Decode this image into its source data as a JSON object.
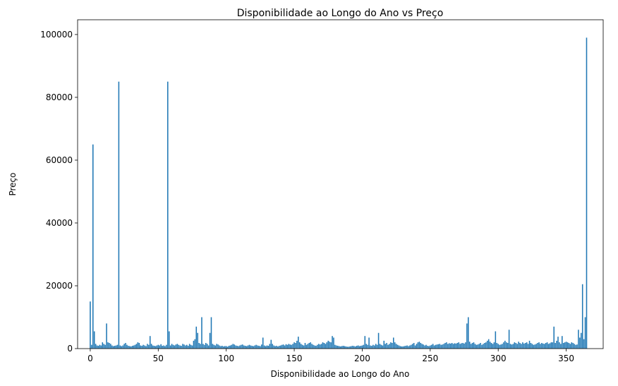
{
  "chart_data": {
    "type": "bar",
    "title": "Disponibilidade ao Longo do Ano vs Preço",
    "xlabel": "Disponibilidade ao Longo do Ano",
    "ylabel": "Preço",
    "color": "#1f77b4",
    "x": [
      0,
      1,
      2,
      3,
      4,
      5,
      6,
      7,
      8,
      9,
      10,
      11,
      12,
      13,
      14,
      15,
      16,
      17,
      18,
      19,
      20,
      21,
      22,
      23,
      24,
      25,
      26,
      27,
      28,
      29,
      30,
      31,
      32,
      33,
      34,
      35,
      36,
      37,
      38,
      39,
      40,
      41,
      42,
      43,
      44,
      45,
      46,
      47,
      48,
      49,
      50,
      51,
      52,
      53,
      54,
      55,
      56,
      57,
      58,
      59,
      60,
      61,
      62,
      63,
      64,
      65,
      66,
      67,
      68,
      69,
      70,
      71,
      72,
      73,
      74,
      75,
      76,
      77,
      78,
      79,
      80,
      81,
      82,
      83,
      84,
      85,
      86,
      87,
      88,
      89,
      90,
      91,
      92,
      93,
      94,
      95,
      96,
      97,
      98,
      99,
      100,
      101,
      102,
      103,
      104,
      105,
      106,
      107,
      108,
      109,
      110,
      111,
      112,
      113,
      114,
      115,
      116,
      117,
      118,
      119,
      120,
      121,
      122,
      123,
      124,
      125,
      126,
      127,
      128,
      129,
      130,
      131,
      132,
      133,
      134,
      135,
      136,
      137,
      138,
      139,
      140,
      141,
      142,
      143,
      144,
      145,
      146,
      147,
      148,
      149,
      150,
      151,
      152,
      153,
      154,
      155,
      156,
      157,
      158,
      159,
      160,
      161,
      162,
      163,
      164,
      165,
      166,
      167,
      168,
      169,
      170,
      171,
      172,
      173,
      174,
      175,
      176,
      177,
      178,
      179,
      180,
      181,
      182,
      183,
      184,
      185,
      186,
      187,
      188,
      189,
      190,
      191,
      192,
      193,
      194,
      195,
      196,
      197,
      198,
      199,
      200,
      201,
      202,
      203,
      204,
      205,
      206,
      207,
      208,
      209,
      210,
      211,
      212,
      213,
      214,
      215,
      216,
      217,
      218,
      219,
      220,
      221,
      222,
      223,
      224,
      225,
      226,
      227,
      228,
      229,
      230,
      231,
      232,
      233,
      234,
      235,
      236,
      237,
      238,
      239,
      240,
      241,
      242,
      243,
      244,
      245,
      246,
      247,
      248,
      249,
      250,
      251,
      252,
      253,
      254,
      255,
      256,
      257,
      258,
      259,
      260,
      261,
      262,
      263,
      264,
      265,
      266,
      267,
      268,
      269,
      270,
      271,
      272,
      273,
      274,
      275,
      276,
      277,
      278,
      279,
      280,
      281,
      282,
      283,
      284,
      285,
      286,
      287,
      288,
      289,
      290,
      291,
      292,
      293,
      294,
      295,
      296,
      297,
      298,
      299,
      300,
      301,
      302,
      303,
      304,
      305,
      306,
      307,
      308,
      309,
      310,
      311,
      312,
      313,
      314,
      315,
      316,
      317,
      318,
      319,
      320,
      321,
      322,
      323,
      324,
      325,
      326,
      327,
      328,
      329,
      330,
      331,
      332,
      333,
      334,
      335,
      336,
      337,
      338,
      339,
      340,
      341,
      342,
      343,
      344,
      345,
      346,
      347,
      348,
      349,
      350,
      351,
      352,
      353,
      354,
      355,
      356,
      357,
      358,
      359,
      360,
      361,
      362,
      363,
      364,
      365
    ],
    "values": [
      15000,
      1200,
      65000,
      5500,
      1500,
      1000,
      900,
      1200,
      1000,
      2000,
      1500,
      1200,
      8000,
      2000,
      1800,
      1500,
      1000,
      800,
      900,
      1000,
      1200,
      85000,
      1000,
      800,
      1000,
      1500,
      1800,
      1200,
      900,
      800,
      700,
      900,
      1000,
      1200,
      1500,
      2000,
      1800,
      1000,
      900,
      1200,
      1000,
      800,
      1500,
      1200,
      4000,
      1500,
      1000,
      900,
      800,
      1000,
      1200,
      1000,
      1400,
      900,
      1000,
      800,
      1200,
      85000,
      5500,
      1000,
      1500,
      1200,
      1000,
      1300,
      1500,
      1200,
      1000,
      900,
      1500,
      1300,
      1000,
      1200,
      900,
      1500,
      1200,
      1000,
      2500,
      3000,
      7000,
      5000,
      1800,
      1500,
      10000,
      1500,
      1200,
      1800,
      1500,
      1000,
      5000,
      10000,
      1500,
      1200,
      1000,
      1500,
      1300,
      1000,
      800,
      900,
      700,
      800,
      800,
      600,
      900,
      1000,
      1200,
      1500,
      1300,
      1000,
      900,
      800,
      1000,
      1200,
      1300,
      1000,
      900,
      800,
      1000,
      1200,
      1000,
      900,
      800,
      1000,
      1200,
      1000,
      900,
      800,
      1300,
      3500,
      1000,
      800,
      1000,
      900,
      1500,
      2800,
      1500,
      1000,
      800,
      900,
      700,
      900,
      1000,
      1200,
      1300,
      1000,
      1400,
      1200,
      1500,
      1300,
      1200,
      1500,
      2000,
      1800,
      2500,
      3800,
      2000,
      1500,
      1200,
      1000,
      1800,
      1200,
      1500,
      1800,
      2000,
      1500,
      1200,
      1000,
      900,
      1200,
      1500,
      1300,
      1500,
      2000,
      1800,
      1500,
      2000,
      2500,
      2200,
      2000,
      4000,
      3500,
      1200,
      1000,
      900,
      800,
      700,
      800,
      900,
      800,
      700,
      600,
      600,
      700,
      800,
      900,
      800,
      700,
      900,
      1000,
      800,
      900,
      1000,
      1200,
      4000,
      1500,
      1200,
      3500,
      1000,
      900,
      1200,
      1000,
      1500,
      1200,
      5000,
      1500,
      1200,
      1000,
      2500,
      1500,
      1800,
      1200,
      1500,
      2000,
      1800,
      3500,
      2000,
      1500,
      1200,
      1000,
      800,
      700,
      700,
      800,
      900,
      1000,
      800,
      1000,
      1200,
      1500,
      1800,
      1000,
      1500,
      2000,
      2200,
      1800,
      1500,
      1300,
      1000,
      1200,
      900,
      800,
      1000,
      1200,
      1500,
      1000,
      1200,
      1300,
      1400,
      1500,
      1200,
      1300,
      1500,
      1800,
      2000,
      1500,
      1700,
      1600,
      1800,
      1500,
      1700,
      1600,
      1800,
      2000,
      1500,
      1700,
      1800,
      1600,
      2000,
      8000,
      10000,
      2200,
      1500,
      1800,
      2000,
      1500,
      1200,
      1300,
      1500,
      1800,
      1200,
      1500,
      1800,
      2000,
      2500,
      3000,
      2200,
      1800,
      1500,
      2000,
      5500,
      1800,
      1500,
      1200,
      1300,
      1500,
      2000,
      2500,
      2000,
      1800,
      6000,
      1500,
      1300,
      1500,
      2000,
      1800,
      1500,
      2200,
      1800,
      1500,
      2000,
      1600,
      1800,
      2000,
      1500,
      2500,
      1800,
      1500,
      1200,
      1300,
      1500,
      1800,
      2000,
      1500,
      1800,
      1600,
      1500,
      1800,
      2000,
      1500,
      1700,
      2000,
      2000,
      7000,
      1800,
      2500,
      3800,
      2000,
      1500,
      4000,
      1800,
      2000,
      2200,
      2000,
      1800,
      1500,
      2000,
      1800,
      1500,
      1200,
      1300,
      6000,
      3500,
      5000,
      20500,
      3000,
      10000,
      99000
    ],
    "xlim": [
      -9.3,
      377.2
    ],
    "xticks": [
      0,
      50,
      100,
      150,
      200,
      250,
      300,
      350
    ],
    "ylim": [
      0,
      104700
    ],
    "yticks": [
      0,
      20000,
      40000,
      60000,
      80000,
      100000
    ]
  }
}
